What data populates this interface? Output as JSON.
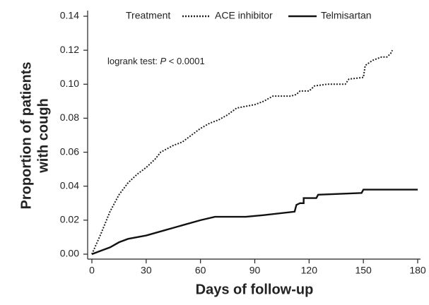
{
  "chart_data": {
    "type": "line",
    "y_label": [
      "Proportion of patients",
      "with cough"
    ],
    "x_label": "Days of follow-up",
    "legend_title": "Treatment",
    "annotation": {
      "before": "logrank test:",
      "italic": "P",
      "after": "< 0.0001"
    },
    "xlim": [
      0,
      180
    ],
    "xticks": [
      0,
      30,
      60,
      90,
      120,
      150,
      180
    ],
    "ylim": [
      0,
      0.14
    ],
    "yticks": [
      {
        "value": 0,
        "label": "0.00"
      },
      {
        "value": 0.02,
        "label": "0.02"
      },
      {
        "value": 0.04,
        "label": "0.04"
      },
      {
        "value": 0.06,
        "label": "0.06"
      },
      {
        "value": 0.08,
        "label": "0.08"
      },
      {
        "value": 0.1,
        "label": "0.10"
      },
      {
        "value": 0.12,
        "label": "0.12"
      },
      {
        "value": 0.14,
        "label": "0.14"
      }
    ],
    "legend_position": "top",
    "series": [
      {
        "name": "ACE inhibitor",
        "color": "#222222",
        "dash": "dotted",
        "x": [
          0,
          5,
          10,
          15,
          20,
          25,
          30,
          35,
          38,
          45,
          50,
          55,
          60,
          65,
          70,
          75,
          80,
          85,
          90,
          95,
          100,
          105,
          110,
          113,
          115,
          120,
          123,
          130,
          140,
          142,
          150,
          151,
          155,
          160,
          163,
          165,
          166
        ],
        "values": [
          0,
          0.012,
          0.025,
          0.035,
          0.042,
          0.047,
          0.051,
          0.056,
          0.06,
          0.064,
          0.066,
          0.07,
          0.074,
          0.077,
          0.079,
          0.082,
          0.086,
          0.087,
          0.088,
          0.09,
          0.093,
          0.093,
          0.093,
          0.094,
          0.096,
          0.096,
          0.099,
          0.1,
          0.1,
          0.103,
          0.104,
          0.111,
          0.114,
          0.116,
          0.116,
          0.118,
          0.12
        ]
      },
      {
        "name": "Telmisartan",
        "color": "#111111",
        "dash": "solid",
        "x": [
          0,
          5,
          10,
          15,
          20,
          30,
          40,
          50,
          60,
          68,
          85,
          95,
          112,
          113,
          115,
          117,
          117,
          124,
          125,
          149,
          150,
          180
        ],
        "values": [
          0,
          0.002,
          0.004,
          0.007,
          0.009,
          0.011,
          0.014,
          0.017,
          0.02,
          0.022,
          0.022,
          0.023,
          0.025,
          0.029,
          0.03,
          0.03,
          0.033,
          0.033,
          0.035,
          0.036,
          0.038,
          0.038
        ]
      }
    ]
  }
}
